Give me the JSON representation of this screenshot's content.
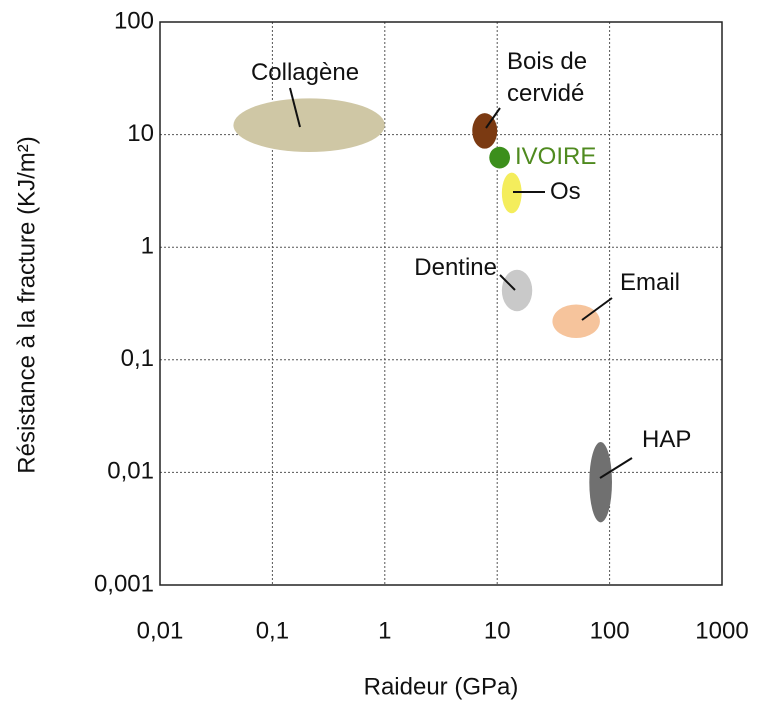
{
  "chart_data": {
    "type": "scatter",
    "x_label": "Raideur (GPa)",
    "y_label": "Résistance à la fracture (KJ/m²)",
    "log_x": true,
    "log_y": true,
    "grid": true,
    "xlim": [
      0.01,
      1000
    ],
    "xticks": [
      {
        "value": 0.01,
        "label": "0,01"
      },
      {
        "value": 0.1,
        "label": "0,1"
      },
      1,
      10,
      100,
      1000
    ],
    "ylim": [
      0.001,
      100
    ],
    "yticks": [
      {
        "value": 0.001,
        "label": "0,001"
      },
      {
        "value": 0.01,
        "label": "0,01"
      },
      {
        "value": 0.1,
        "label": "0,1"
      },
      1,
      10,
      100
    ],
    "series": [
      {
        "name": "Collagène",
        "color": "#cfc7a5",
        "x": [
          0.045,
          1
        ],
        "y": [
          7,
          21
        ]
      },
      {
        "name": "Bois de cervidé",
        "color": "#7b3a12",
        "x": [
          6,
          10
        ],
        "y": [
          7.5,
          15.5
        ]
      },
      {
        "name": "IVOIRE",
        "color": "#3c8f1c",
        "label_color": "#4f8a1f",
        "x": [
          8.5,
          13
        ],
        "y": [
          5,
          7.8
        ]
      },
      {
        "name": "Os",
        "color": "#f4ed5c",
        "x": [
          11,
          16.5
        ],
        "y": [
          2,
          4.6
        ]
      },
      {
        "name": "Dentine",
        "color": "#c9c9c9",
        "x": [
          11,
          20.5
        ],
        "y": [
          0.27,
          0.63
        ]
      },
      {
        "name": "Email",
        "color": "#f6c49c",
        "x": [
          31,
          82
        ],
        "y": [
          0.156,
          0.31
        ]
      },
      {
        "name": "HAP",
        "color": "#707070",
        "x": [
          66,
          105
        ],
        "y": [
          0.0036,
          0.0186
        ]
      }
    ]
  }
}
